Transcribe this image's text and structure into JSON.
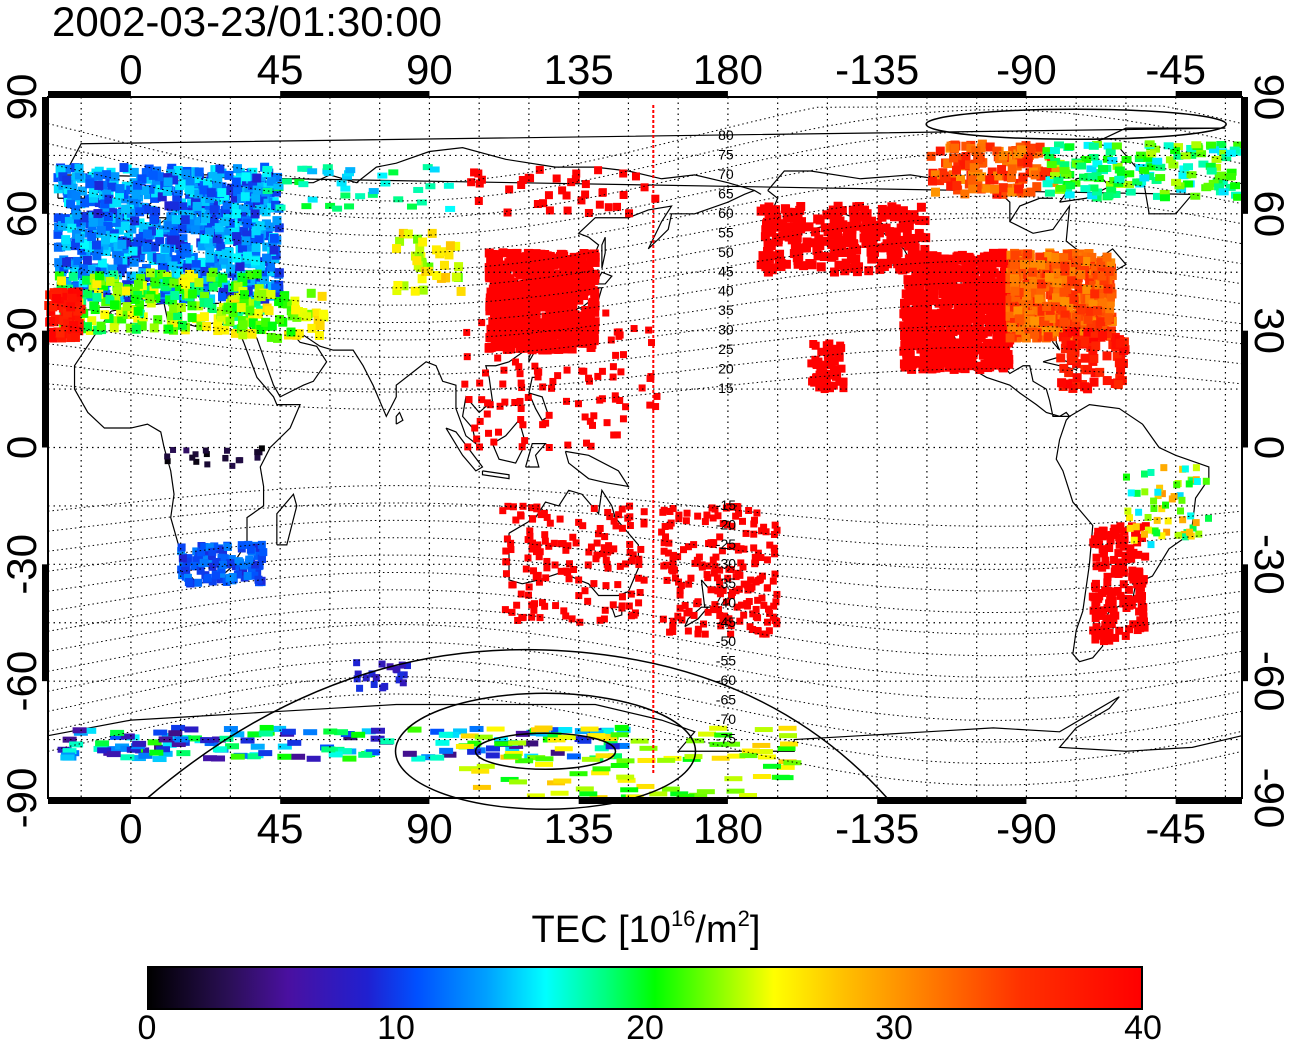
{
  "title": "2002-03-23/01:30:00",
  "colors": {
    "frame": "#000000",
    "grid": "#000000",
    "terminator": "#ff0000",
    "tec_high": "#ff0000",
    "tec_mid": "#00ff00",
    "tec_low": "#1a1aff",
    "tec_zero": "#000000"
  },
  "map": {
    "projection": "equirectangular",
    "lon_center": 135,
    "lon_range": [
      -25,
      335
    ],
    "lat_range": [
      -90,
      90
    ],
    "top_lon_ticks": [
      "0",
      "45",
      "90",
      "135",
      "180",
      "-135",
      "-90",
      "-45"
    ],
    "bottom_lon_ticks": [
      "0",
      "45",
      "90",
      "135",
      "180",
      "-135",
      "-90",
      "-45"
    ],
    "lat_ticks": [
      "90",
      "60",
      "30",
      "0",
      "-30",
      "-60",
      "-90"
    ],
    "terminator_lon": 157.5,
    "magnetic_lat_labels": [
      "80",
      "75",
      "70",
      "65",
      "60",
      "55",
      "50",
      "45",
      "40",
      "35",
      "30",
      "25",
      "20",
      "15",
      "-15",
      "-20",
      "-25",
      "-30",
      "-35",
      "-40",
      "-45",
      "-50",
      "-55",
      "-60",
      "-65",
      "-70",
      "-75"
    ]
  },
  "colorbar": {
    "label": "TEC  [10",
    "label_exp": "16",
    "label_unit": "/m",
    "label_unit_exp": "2",
    "label_close": "]",
    "min": 0,
    "max": 40,
    "ticks": [
      "0",
      "10",
      "20",
      "30",
      "40"
    ]
  }
}
